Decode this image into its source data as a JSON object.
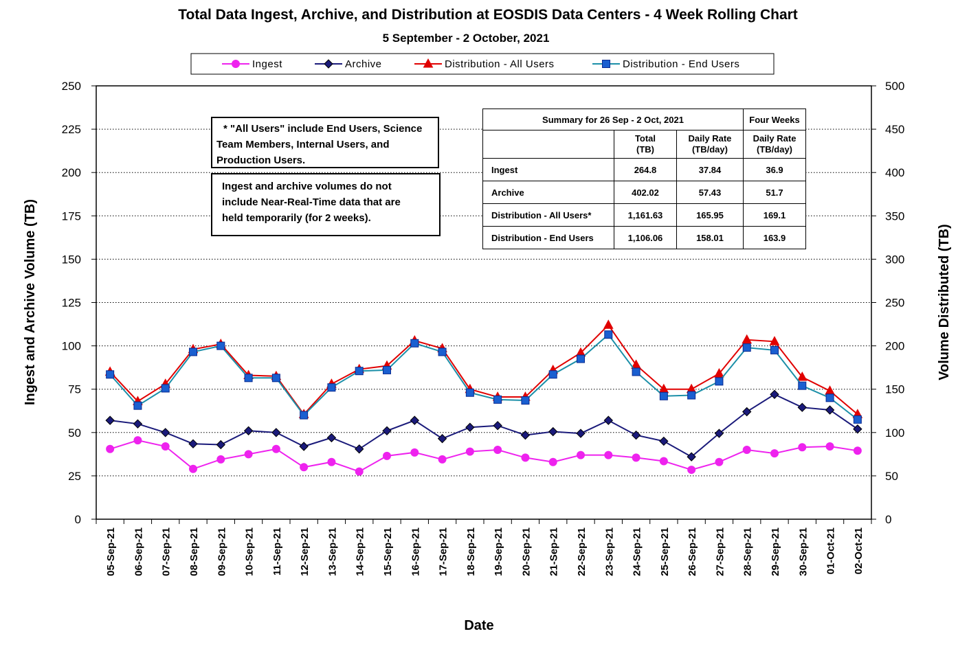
{
  "chart_data": {
    "type": "line",
    "title": "Total Data Ingest, Archive, and  Distribution at EOSDIS Data Centers - 4 Week Rolling Chart",
    "subtitle": "5  September   - 2  October,  2021",
    "xlabel": "Date",
    "ylabel_left": "Ingest and Archive Volume (TB)",
    "ylabel_right": "Volume Distributed (TB)",
    "ylim_left": [
      0,
      250
    ],
    "ylim_right": [
      0,
      500
    ],
    "yticks_left": [
      0,
      25,
      50,
      75,
      100,
      125,
      150,
      175,
      200,
      225,
      250
    ],
    "yticks_right": [
      0,
      50,
      100,
      150,
      200,
      250,
      300,
      350,
      400,
      450,
      500
    ],
    "grid": "horizontal dotted",
    "legend_position": "top",
    "categories": [
      "05-Sep-21",
      "06-Sep-21",
      "07-Sep-21",
      "08-Sep-21",
      "09-Sep-21",
      "10-Sep-21",
      "11-Sep-21",
      "12-Sep-21",
      "13-Sep-21",
      "14-Sep-21",
      "15-Sep-21",
      "16-Sep-21",
      "17-Sep-21",
      "18-Sep-21",
      "19-Sep-21",
      "20-Sep-21",
      "21-Sep-21",
      "22-Sep-21",
      "23-Sep-21",
      "24-Sep-21",
      "25-Sep-21",
      "26-Sep-21",
      "27-Sep-21",
      "28-Sep-21",
      "29-Sep-21",
      "30-Sep-21",
      "01-Oct-21",
      "02-Oct-21"
    ],
    "series": [
      {
        "name": "Ingest",
        "axis": "left",
        "color": "#ee22ee",
        "marker": "circle",
        "values": [
          40.5,
          45.5,
          42,
          29,
          34.5,
          37.5,
          40.5,
          30,
          33,
          27.5,
          36.5,
          38.5,
          34.5,
          39,
          40,
          35.5,
          33,
          37,
          37,
          35.5,
          33.5,
          28.5,
          33,
          40,
          38,
          41.5,
          42,
          39.5
        ]
      },
      {
        "name": "Archive",
        "axis": "left",
        "color": "#1a1a7a",
        "marker": "diamond",
        "values": [
          57,
          55,
          50,
          43.5,
          43,
          51,
          50,
          42,
          47,
          40.5,
          51,
          57,
          46.5,
          53,
          54,
          48.5,
          50.5,
          49.5,
          57,
          48.5,
          45,
          36,
          49.5,
          62,
          72,
          64.5,
          63,
          52
        ]
      },
      {
        "name": "Distribution - All Users",
        "axis": "right",
        "color": "#e00000",
        "marker": "triangle",
        "values": [
          170,
          136,
          156,
          196,
          202,
          166,
          165,
          121,
          156,
          173,
          177,
          206,
          197,
          150,
          141,
          141,
          172,
          192,
          224,
          178,
          150,
          150,
          168,
          207,
          205,
          164,
          148,
          121
        ]
      },
      {
        "name": "Distribution - End Users",
        "axis": "right",
        "color": "#1a5fd0",
        "line_color": "#1b8fa8",
        "marker": "square",
        "values": [
          167,
          131,
          151,
          193,
          200,
          163,
          163,
          120,
          152,
          171,
          172,
          203,
          193,
          146,
          138,
          137,
          167,
          185,
          213,
          170,
          142,
          143,
          159,
          198,
          195,
          154,
          140,
          115
        ]
      }
    ]
  },
  "notes": {
    "all_users": [
      "* \"All Users\" include End Users, Science",
      "Team Members,  Internal Users, and",
      "Production Users."
    ],
    "near_real_time": [
      "Ingest and archive volumes do not",
      "include Near-Real-Time data that are",
      "held temporarily (for 2 weeks)."
    ]
  },
  "summary": {
    "title": "Summary  for  26  Sep   -  2  Oct,  2021",
    "four_weeks": "Four Weeks",
    "col_total": [
      "Total",
      "(TB)"
    ],
    "col_daily": [
      "Daily Rate",
      "(TB/day)"
    ],
    "col_four_daily": [
      "Daily Rate",
      "(TB/day)"
    ],
    "rows": [
      {
        "label": "Ingest",
        "total": "264.8",
        "daily": "37.84",
        "four_weeks": "36.9"
      },
      {
        "label": "Archive",
        "total": "402.02",
        "daily": "57.43",
        "four_weeks": "51.7"
      },
      {
        "label": "Distribution - All Users*",
        "total": "1,161.63",
        "daily": "165.95",
        "four_weeks": "169.1"
      },
      {
        "label": "Distribution - End Users",
        "total": "1,106.06",
        "daily": "158.01",
        "four_weeks": "163.9"
      }
    ]
  }
}
